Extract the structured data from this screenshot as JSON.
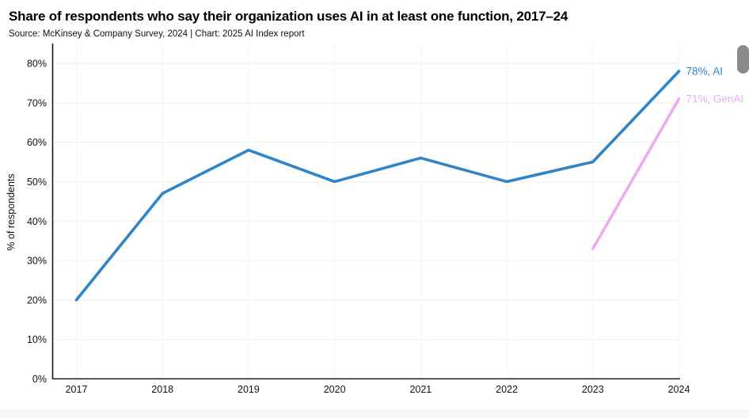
{
  "page": {
    "background": "#ffffff",
    "scrollbar_color": "#8b8b8b",
    "bottom_strip_color": "#f8f8f8"
  },
  "chart_data": {
    "type": "line",
    "title": "Share of respondents who say their organization uses AI in at least one function, 2017–24",
    "subtitle": "Source: McKinsey & Company Survey, 2024 | Chart: 2025 AI Index report",
    "ylabel": "% of respondents",
    "categories": [
      "2017",
      "2018",
      "2019",
      "2020",
      "2021",
      "2022",
      "2023",
      "2024"
    ],
    "y_ticks": [
      "0%",
      "10%",
      "20%",
      "30%",
      "40%",
      "50%",
      "60%",
      "70%",
      "80%"
    ],
    "ylim": [
      0,
      80
    ],
    "ytick_step": 10,
    "grid": true,
    "legend_position": "line-end-labels",
    "series": [
      {
        "name": "AI",
        "color": "#2e86c8",
        "end_label": "78%, AI",
        "values": [
          20,
          47,
          58,
          50,
          56,
          50,
          55,
          78
        ]
      },
      {
        "name": "GenAI",
        "color": "#ecaaf0",
        "end_label": "71%, GenAI",
        "values": [
          null,
          null,
          null,
          null,
          null,
          null,
          33,
          71
        ]
      }
    ],
    "colors": {
      "axis": "#1a1a1a",
      "tick_text": "#111111",
      "gridline_h": "#f1efec",
      "gridline_v": "#f6f4f2"
    }
  }
}
